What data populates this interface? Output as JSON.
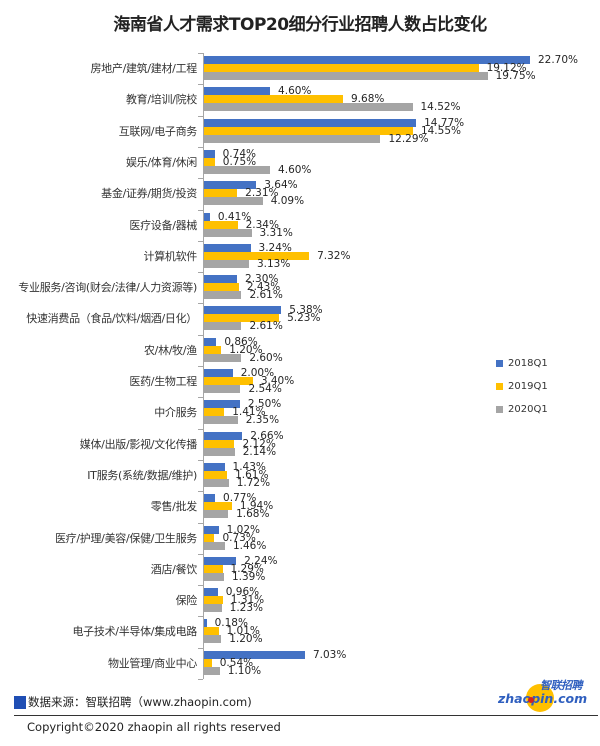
{
  "title": "海南省人才需求TOP20细分行业招聘人数占比变化",
  "legend": [
    {
      "label": "2018Q1",
      "color": "#4472c4"
    },
    {
      "label": "2019Q1",
      "color": "#ffc000"
    },
    {
      "label": "2020Q1",
      "color": "#a5a5a5"
    }
  ],
  "footer": {
    "source": "数据来源：智联招聘（www.zhaopin.com)",
    "copyright": "Copyright©2020 zhaopin all rights reserved",
    "logo_cn": "智联招聘",
    "logo_en": "zhaopin.com"
  },
  "chart_data": {
    "type": "bar",
    "orientation": "horizontal",
    "title": "海南省人才需求TOP20细分行业招聘人数占比变化",
    "xlabel": "",
    "ylabel": "",
    "unit": "%",
    "grid": false,
    "legend_position": "right",
    "xlim": [
      0,
      23
    ],
    "categories": [
      "房地产/建筑/建材/工程",
      "教育/培训/院校",
      "互联网/电子商务",
      "娱乐/体育/休闲",
      "基金/证券/期货/投资",
      "医疗设备/器械",
      "计算机软件",
      "专业服务/咨询(财会/法律/人力资源等)",
      "快速消费品（食品/饮料/烟酒/日化）",
      "农/林/牧/渔",
      "医药/生物工程",
      "中介服务",
      "媒体/出版/影视/文化传播",
      "IT服务(系统/数据/维护)",
      "零售/批发",
      "医疗/护理/美容/保健/卫生服务",
      "酒店/餐饮",
      "保险",
      "电子技术/半导体/集成电路",
      "物业管理/商业中心"
    ],
    "series": [
      {
        "name": "2018Q1",
        "color": "#4472c4",
        "values": [
          22.7,
          4.6,
          14.77,
          0.74,
          3.64,
          0.41,
          3.24,
          2.3,
          5.38,
          0.86,
          2.0,
          2.5,
          2.66,
          1.43,
          0.77,
          1.02,
          2.24,
          0.96,
          0.18,
          7.03
        ]
      },
      {
        "name": "2019Q1",
        "color": "#ffc000",
        "values": [
          19.12,
          9.68,
          14.55,
          0.75,
          2.31,
          2.34,
          7.32,
          2.43,
          5.23,
          1.2,
          3.4,
          1.41,
          2.12,
          1.61,
          1.94,
          0.73,
          1.29,
          1.31,
          1.01,
          0.54
        ]
      },
      {
        "name": "2020Q1",
        "color": "#a5a5a5",
        "values": [
          19.75,
          14.52,
          12.29,
          4.6,
          4.09,
          3.31,
          3.13,
          2.61,
          2.61,
          2.6,
          2.54,
          2.35,
          2.14,
          1.72,
          1.68,
          1.46,
          1.39,
          1.23,
          1.2,
          1.1
        ]
      }
    ]
  }
}
